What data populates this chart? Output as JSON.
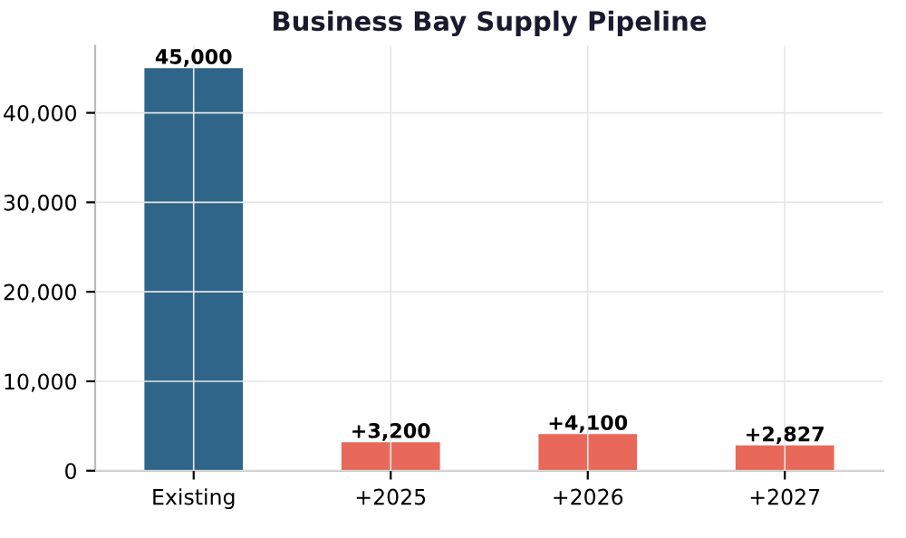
{
  "chart_data": {
    "type": "bar",
    "title": "Business Bay Supply Pipeline",
    "categories": [
      "Existing",
      "+2025",
      "+2026",
      "+2027"
    ],
    "values": [
      45000,
      3200,
      4100,
      2827
    ],
    "colors": [
      "#2e6589",
      "#e8685a",
      "#e8685a",
      "#e8685a"
    ],
    "value_labels": [
      "45,000",
      "+3,200",
      "+4,100",
      "+2,827"
    ],
    "ylim": [
      0,
      47500
    ],
    "yticks": [
      {
        "value": 0,
        "label": "0"
      },
      {
        "value": 10000,
        "label": "10,000"
      },
      {
        "value": 20000,
        "label": "20,000"
      },
      {
        "value": 30000,
        "label": "30,000"
      },
      {
        "value": 40000,
        "label": "40,000"
      }
    ],
    "grid": true
  }
}
